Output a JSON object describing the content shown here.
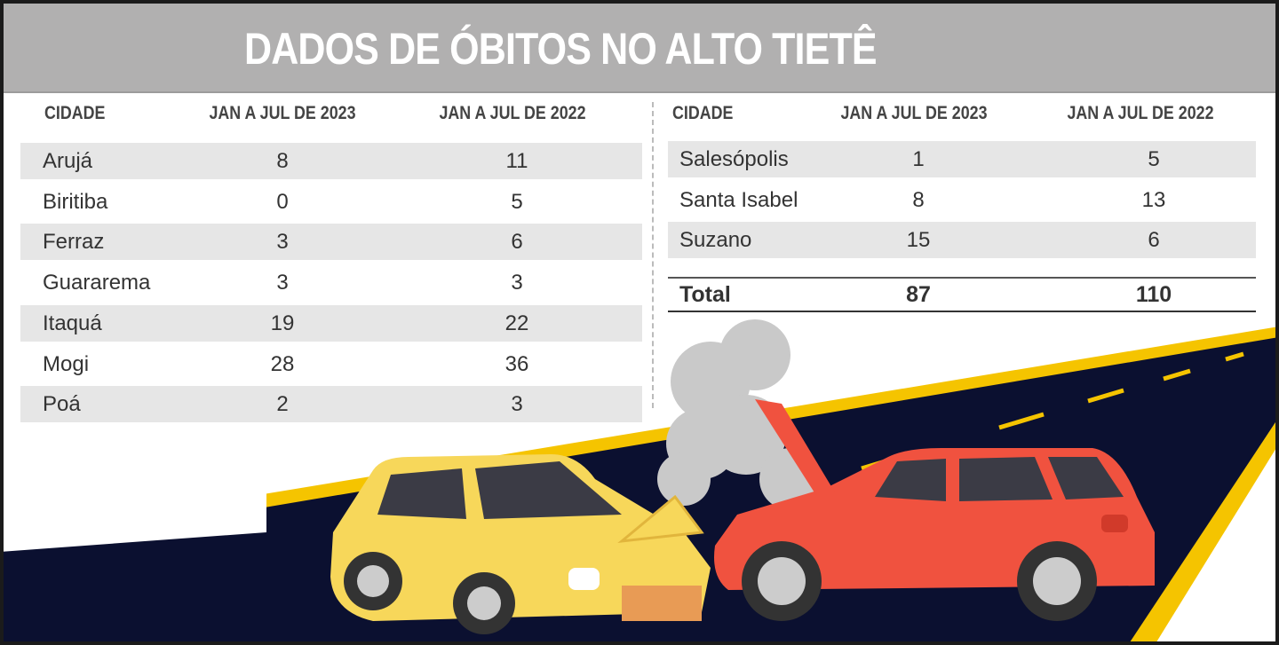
{
  "title": "DADOS DE ÓBITOS NO ALTO TIETÊ",
  "headers": [
    "CIDADE",
    "JAN A JUL DE 2023",
    "JAN A JUL DE 2022"
  ],
  "left_table": [
    {
      "city": "Arujá",
      "y2023": "8",
      "y2022": "11"
    },
    {
      "city": "Biritiba",
      "y2023": "0",
      "y2022": "5"
    },
    {
      "city": "Ferraz",
      "y2023": "3",
      "y2022": "6"
    },
    {
      "city": "Guararema",
      "y2023": "3",
      "y2022": "3"
    },
    {
      "city": "Itaquá",
      "y2023": "19",
      "y2022": "22"
    },
    {
      "city": "Mogi",
      "y2023": "28",
      "y2022": "36"
    },
    {
      "city": "Poá",
      "y2023": "2",
      "y2022": "3"
    }
  ],
  "right_table": [
    {
      "city": "Salesópolis",
      "y2023": "1",
      "y2022": "5"
    },
    {
      "city": "Santa Isabel",
      "y2023": "8",
      "y2022": "13"
    },
    {
      "city": "Suzano",
      "y2023": "15",
      "y2022": "6"
    }
  ],
  "total": {
    "label": "Total",
    "y2023": "87",
    "y2022": "110"
  },
  "colors": {
    "title_bar": "#b1b0b0",
    "stripe": "#e6e6e6",
    "road": "#0b1030",
    "road_line": "#f5c400",
    "yellow_car": "#f7d75a",
    "red_car": "#f0523f",
    "smoke": "#c9c9c9"
  }
}
